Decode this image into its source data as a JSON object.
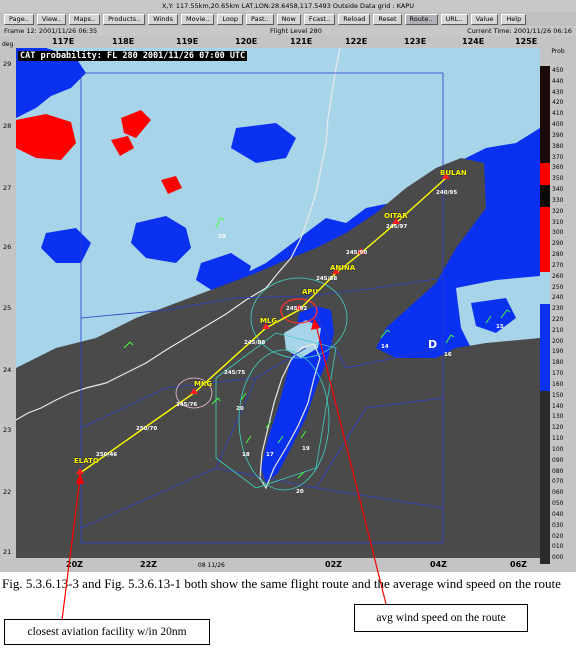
{
  "window": {
    "title": "X,Y: 117.55km,20.65km   LAT,LON:28.6458,117.5493   Outside Data grid : KAPU"
  },
  "toolbar": {
    "buttons": [
      "Page..",
      "View..",
      "Maps..",
      "Products..",
      "Winds",
      "Movie..",
      "Loop",
      "Past..",
      "Now",
      "Fcast..",
      "Reload",
      "Reset",
      "Route..",
      "URL..",
      "Value",
      "Help"
    ]
  },
  "info": {
    "frame": "Frame 12: 2001/11/26 06:35",
    "level": "Flight Level 280",
    "current_time": "Current Time: 2001/11/26 06:16"
  },
  "map": {
    "title": "CAT probability: FL 280 2001/11/26 07:00 UTC",
    "deg_label": "deg",
    "top_axis": [
      "117E",
      "118E",
      "119E",
      "120E",
      "121E",
      "122E",
      "123E",
      "124E",
      "125E"
    ],
    "left_axis": [
      "29",
      "28",
      "27",
      "26",
      "25",
      "24",
      "23",
      "22",
      "21"
    ],
    "bottom_axis": [
      "20Z",
      "22Z",
      "08  11/26",
      "02Z",
      "04Z",
      "06Z"
    ],
    "waypoints": {
      "bulan": "BULAN",
      "oitar": "OITAR",
      "anina": "ANINA",
      "apu": "APU",
      "mlg": "MLG",
      "mkg": "MKG",
      "elato": "ELATO",
      "d": "D"
    },
    "winds": {
      "w1": "240/95",
      "w2": "245/97",
      "w3": "245/90",
      "w4": "245/88",
      "w5": "245/92",
      "w6": "245/88",
      "w7": "245/75",
      "w8": "245/76",
      "w9": "250/70",
      "w10": "250/46"
    },
    "obs": {
      "o1": "20",
      "o2": "14",
      "o3": "16",
      "o4": "15",
      "o5": "20",
      "o6": "17",
      "o7": "19",
      "o8": "20",
      "o9": "18"
    }
  },
  "colorbar": {
    "title": "Prob",
    "labels": [
      "450",
      "440",
      "430",
      "420",
      "410",
      "400",
      "390",
      "380",
      "370",
      "360",
      "350",
      "340",
      "330",
      "320",
      "310",
      "300",
      "290",
      "280",
      "270",
      "260",
      "250",
      "240",
      "230",
      "220",
      "210",
      "200",
      "190",
      "180",
      "170",
      "160",
      "150",
      "140",
      "130",
      "120",
      "110",
      "100",
      "090",
      "080",
      "070",
      "060",
      "050",
      "040",
      "030",
      "020",
      "010",
      "000"
    ]
  },
  "colors": {
    "dark_land": "#4a4a4a",
    "light_blue": "#a8d4ea",
    "blue": "#0a30f0",
    "red": "#ff0000",
    "route": "#ffff00"
  },
  "caption": "Fig. 5.3.6.13-3 and Fig. 5.3.6.13-1 both show the same flight route and the average wind speed on the route",
  "callouts": {
    "left": "closest aviation facility w/in 20nm",
    "right": "avg wind speed on the route"
  }
}
